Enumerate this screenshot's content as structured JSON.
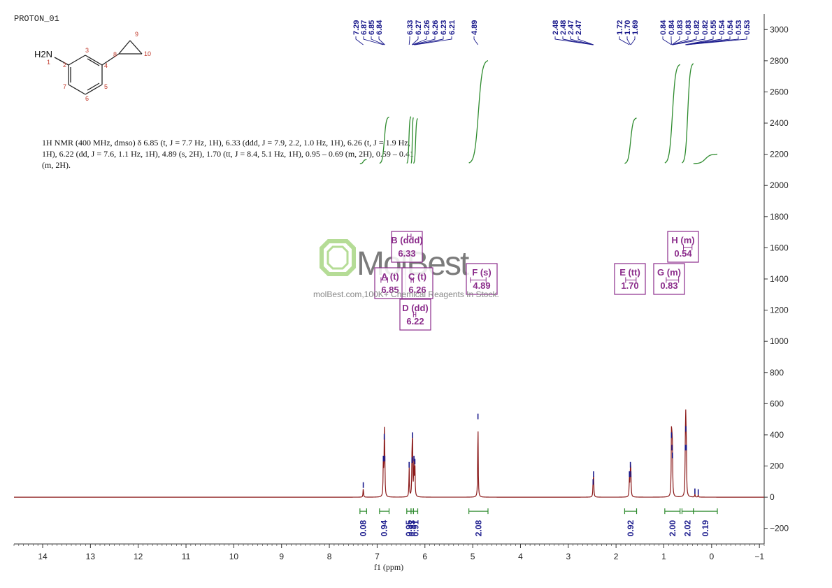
{
  "spectrum_label": "PROTON_01",
  "description": "1H NMR (400 MHz, dmso) δ 6.85 (t, J = 7.7 Hz, 1H), 6.33 (ddd, J = 7.9, 2.2, 1.0 Hz, 1H), 6.26 (t, J = 1.9 Hz, 1H), 6.22 (dd, J = 7.6, 1.1 Hz, 1H), 4.89 (s, 2H), 1.70 (tt, J = 8.4, 5.1 Hz, 1H), 0.95 – 0.69 (m, 2H), 0.59 – 0.41 (m, 2H).",
  "watermark": {
    "brand": "MolBest",
    "caption": "molBest.com,100K+ Chemical Reagents In Stock."
  },
  "structure": {
    "amine_label": "H2N",
    "atom_numbers": [
      "1",
      "2",
      "3",
      "4",
      "5",
      "6",
      "7",
      "8",
      "9",
      "10"
    ]
  },
  "colors": {
    "spectrum": "#8b1a1a",
    "peak_marker": "#1a1a8c",
    "integral": "#2e8b2e",
    "multiplet_box": "#8b2c8b",
    "axis": "#333333"
  },
  "chart_data": {
    "type": "line",
    "title": "",
    "xlabel": "f1 (ppm)",
    "ylabel": "",
    "xlim": [
      14.6,
      -1.1
    ],
    "ylim": [
      -300,
      3100
    ],
    "x_ticks": [
      14,
      13,
      12,
      11,
      10,
      9,
      8,
      7,
      6,
      5,
      4,
      3,
      2,
      1,
      0,
      -1
    ],
    "x_tick_labels": [
      "14",
      "13",
      "12",
      "11",
      "10",
      "9",
      "8",
      "7",
      "6",
      "5",
      "4",
      "3",
      "2",
      "1",
      "0",
      "−1"
    ],
    "y_ticks": [
      -200,
      0,
      200,
      400,
      600,
      800,
      1000,
      1200,
      1400,
      1600,
      1800,
      2000,
      2200,
      2400,
      2600,
      2800,
      3000
    ],
    "y_tick_labels": [
      "−200",
      "0",
      "200",
      "400",
      "600",
      "800",
      "1000",
      "1200",
      "1400",
      "1600",
      "1800",
      "2000",
      "2200",
      "2400",
      "2600",
      "2800",
      "3000"
    ],
    "grid": false,
    "peaks": [
      {
        "ppm": 7.29,
        "height": 60
      },
      {
        "ppm": 6.87,
        "height": 230
      },
      {
        "ppm": 6.85,
        "height": 370
      },
      {
        "ppm": 6.84,
        "height": 230
      },
      {
        "ppm": 6.33,
        "height": 190
      },
      {
        "ppm": 6.27,
        "height": 220
      },
      {
        "ppm": 6.26,
        "height": 380
      },
      {
        "ppm": 6.23,
        "height": 230
      },
      {
        "ppm": 6.21,
        "height": 210
      },
      {
        "ppm": 4.89,
        "height": 500
      },
      {
        "ppm": 2.48,
        "height": 80
      },
      {
        "ppm": 2.47,
        "height": 130
      },
      {
        "ppm": 1.72,
        "height": 130
      },
      {
        "ppm": 1.7,
        "height": 190
      },
      {
        "ppm": 1.69,
        "height": 130
      },
      {
        "ppm": 0.84,
        "height": 380
      },
      {
        "ppm": 0.83,
        "height": 300
      },
      {
        "ppm": 0.82,
        "height": 250
      },
      {
        "ppm": 0.55,
        "height": 300
      },
      {
        "ppm": 0.54,
        "height": 420
      },
      {
        "ppm": 0.53,
        "height": 300
      },
      {
        "ppm": 0.35,
        "height": 20
      },
      {
        "ppm": 0.28,
        "height": 15
      }
    ],
    "peak_labels": [
      "7.29",
      "6.87",
      "6.85",
      "6.84",
      "6.33",
      "6.27",
      "6.26",
      "6.26",
      "6.23",
      "6.21",
      "4.89",
      "2.48",
      "2.48",
      "2.47",
      "2.47",
      "1.72",
      "1.70",
      "1.69",
      "0.84",
      "0.84",
      "0.83",
      "0.83",
      "0.82",
      "0.82",
      "0.55",
      "0.54",
      "0.54",
      "0.53",
      "0.53"
    ],
    "peak_label_ppm": [
      7.29,
      6.87,
      6.85,
      6.84,
      6.33,
      6.27,
      6.26,
      6.26,
      6.23,
      6.21,
      4.89,
      2.48,
      2.48,
      2.47,
      2.47,
      1.72,
      1.7,
      1.69,
      0.84,
      0.84,
      0.83,
      0.83,
      0.82,
      0.82,
      0.55,
      0.54,
      0.54,
      0.53,
      0.53
    ],
    "multiplets": [
      {
        "label": "A (t)",
        "shift": "6.85",
        "ppm": 6.85,
        "range": [
          6.92,
          6.78
        ],
        "level": 1420
      },
      {
        "label": "B (ddd)",
        "shift": "6.33",
        "ppm": 6.33,
        "range": [
          6.37,
          6.29
        ],
        "level": 1700
      },
      {
        "label": "C (t)",
        "shift": "6.26",
        "ppm": 6.26,
        "range": [
          6.29,
          6.24
        ],
        "level": 1420
      },
      {
        "label": "D (dd)",
        "shift": "6.22",
        "ppm": 6.22,
        "range": [
          6.24,
          6.19
        ],
        "level": 1200
      },
      {
        "label": "F (s)",
        "shift": "4.89",
        "ppm": 4.89,
        "range": [
          5.05,
          4.72
        ],
        "level": 1420
      },
      {
        "label": "E (tt)",
        "shift": "1.70",
        "ppm": 1.7,
        "range": [
          1.8,
          1.58
        ],
        "level": 1420
      },
      {
        "label": "G (m)",
        "shift": "0.83",
        "ppm": 0.83,
        "range": [
          0.95,
          0.69
        ],
        "level": 1420
      },
      {
        "label": "H (m)",
        "shift": "0.54",
        "ppm": 0.54,
        "range": [
          0.59,
          0.41
        ],
        "level": 1630
      }
    ],
    "integrations": [
      {
        "value": "0.08",
        "range": [
          7.36,
          7.22
        ]
      },
      {
        "value": "0.94",
        "range": [
          6.95,
          6.75
        ]
      },
      {
        "value": "0.95",
        "range": [
          6.38,
          6.29
        ]
      },
      {
        "value": "0.93",
        "range": [
          6.29,
          6.24
        ]
      },
      {
        "value": "0.91",
        "range": [
          6.24,
          6.15
        ]
      },
      {
        "value": "2.08",
        "range": [
          5.08,
          4.68
        ]
      },
      {
        "value": "0.92",
        "range": [
          1.82,
          1.57
        ]
      },
      {
        "value": "2.00",
        "range": [
          0.98,
          0.66
        ]
      },
      {
        "value": "2.02",
        "range": [
          0.62,
          0.38
        ]
      },
      {
        "value": "0.19",
        "range": [
          0.38,
          -0.12
        ]
      }
    ]
  }
}
